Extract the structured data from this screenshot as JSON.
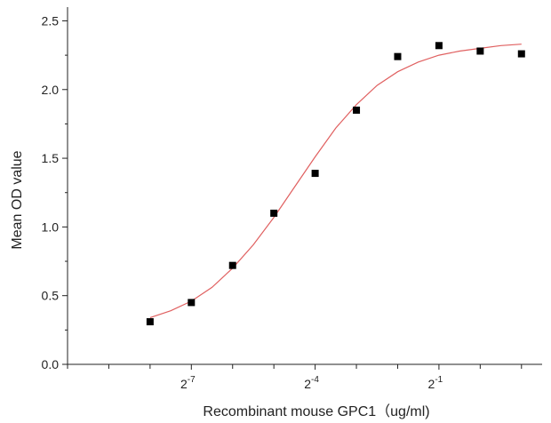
{
  "chart_data": {
    "type": "scatter",
    "xlabel": "Recombinant mouse  GPC1（ug/ml)",
    "ylabel": "Mean OD value",
    "x_scale": "log2",
    "xlim": [
      -10,
      1.5
    ],
    "ylim": [
      0,
      2.6
    ],
    "y_ticks": [
      "0.0",
      "0.5",
      "1.0",
      "1.5",
      "2.0",
      "2.5"
    ],
    "x_ticks": [
      {
        "base": "2",
        "exp": "-7"
      },
      {
        "base": "2",
        "exp": "-4"
      },
      {
        "base": "2",
        "exp": "-1"
      }
    ],
    "points": {
      "marker": "square",
      "color": "#000000",
      "x": [
        -8,
        -7,
        -6,
        -5,
        -4,
        -3,
        -2,
        -1,
        0,
        1
      ],
      "y": [
        0.31,
        0.45,
        0.72,
        1.1,
        1.39,
        1.85,
        2.24,
        2.32,
        2.28,
        2.26
      ]
    },
    "fit": {
      "type": "sigmoid",
      "color": "#e06060",
      "x": [
        -8,
        -7.5,
        -7,
        -6.5,
        -6,
        -5.5,
        -5,
        -4.5,
        -4,
        -3.5,
        -3,
        -2.5,
        -2,
        -1.5,
        -1,
        -0.5,
        0,
        0.5,
        1
      ],
      "y": [
        0.34,
        0.39,
        0.46,
        0.56,
        0.7,
        0.87,
        1.07,
        1.29,
        1.51,
        1.72,
        1.89,
        2.03,
        2.13,
        2.2,
        2.25,
        2.28,
        2.3,
        2.32,
        2.33
      ]
    },
    "grid": false
  }
}
